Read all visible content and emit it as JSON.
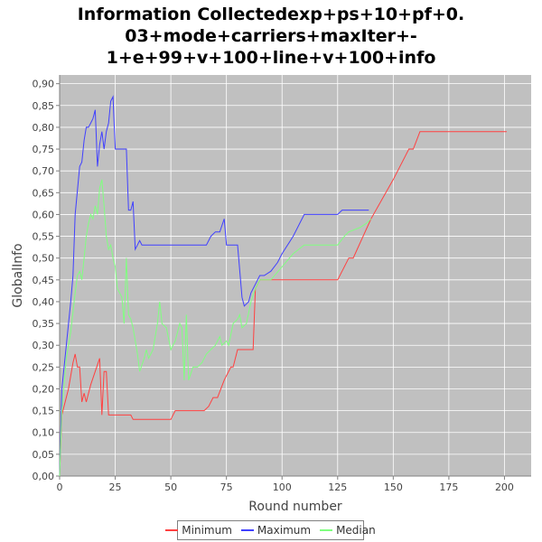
{
  "chart_data": {
    "type": "line",
    "title_lines": [
      "Information Collectedexp+ps+10+pf+0.",
      "03+mode+carriers+maxIter+-",
      "1+e+99+v+100+line+v+100+info"
    ],
    "xlabel": "Round number",
    "ylabel": "GlobalInfo",
    "xlim": [
      0,
      212
    ],
    "ylim": [
      0.0,
      0.92
    ],
    "xticks": [
      0,
      25,
      50,
      75,
      100,
      125,
      150,
      175,
      200
    ],
    "xtick_labels": [
      "0",
      "25",
      "50",
      "75",
      "100",
      "125",
      "150",
      "175",
      "200"
    ],
    "yticks": [
      0.0,
      0.05,
      0.1,
      0.15,
      0.2,
      0.25,
      0.3,
      0.35,
      0.4,
      0.45,
      0.5,
      0.55,
      0.6,
      0.65,
      0.7,
      0.75,
      0.8,
      0.85,
      0.9
    ],
    "ytick_labels": [
      "0,00",
      "0,05",
      "0,10",
      "0,15",
      "0,20",
      "0,25",
      "0,30",
      "0,35",
      "0,40",
      "0,45",
      "0,50",
      "0,55",
      "0,60",
      "0,65",
      "0,70",
      "0,75",
      "0,80",
      "0,85",
      "0,90"
    ],
    "grid": true,
    "legend_position": "bottom",
    "background": "#c0c0c0",
    "series": [
      {
        "name": "Minimum",
        "color": "#ff4040",
        "points": [
          [
            0,
            0.0
          ],
          [
            1,
            0.14
          ],
          [
            2,
            0.16
          ],
          [
            4,
            0.2
          ],
          [
            6,
            0.26
          ],
          [
            7,
            0.28
          ],
          [
            8,
            0.25
          ],
          [
            9,
            0.25
          ],
          [
            10,
            0.17
          ],
          [
            11,
            0.19
          ],
          [
            12,
            0.17
          ],
          [
            13,
            0.19
          ],
          [
            14,
            0.21
          ],
          [
            16,
            0.24
          ],
          [
            18,
            0.27
          ],
          [
            19,
            0.14
          ],
          [
            20,
            0.24
          ],
          [
            21,
            0.24
          ],
          [
            22,
            0.14
          ],
          [
            25,
            0.14
          ],
          [
            32,
            0.14
          ],
          [
            33,
            0.13
          ],
          [
            40,
            0.13
          ],
          [
            50,
            0.13
          ],
          [
            52,
            0.15
          ],
          [
            57,
            0.15
          ],
          [
            65,
            0.15
          ],
          [
            67,
            0.16
          ],
          [
            69,
            0.18
          ],
          [
            71,
            0.18
          ],
          [
            74,
            0.22
          ],
          [
            77,
            0.25
          ],
          [
            78,
            0.25
          ],
          [
            80,
            0.29
          ],
          [
            87,
            0.29
          ],
          [
            88,
            0.43
          ],
          [
            90,
            0.45
          ],
          [
            100,
            0.45
          ],
          [
            110,
            0.45
          ],
          [
            125,
            0.45
          ],
          [
            127,
            0.47
          ],
          [
            130,
            0.5
          ],
          [
            132,
            0.5
          ],
          [
            140,
            0.59
          ],
          [
            150,
            0.68
          ],
          [
            155,
            0.73
          ],
          [
            157,
            0.75
          ],
          [
            159,
            0.75
          ],
          [
            162,
            0.79
          ],
          [
            180,
            0.79
          ],
          [
            201,
            0.79
          ]
        ]
      },
      {
        "name": "Maximum",
        "color": "#4040ff",
        "points": [
          [
            0,
            0.0
          ],
          [
            1,
            0.2
          ],
          [
            3,
            0.3
          ],
          [
            5,
            0.4
          ],
          [
            6,
            0.46
          ],
          [
            7,
            0.6
          ],
          [
            9,
            0.71
          ],
          [
            10,
            0.72
          ],
          [
            11,
            0.77
          ],
          [
            12,
            0.8
          ],
          [
            13,
            0.8
          ],
          [
            14,
            0.81
          ],
          [
            15,
            0.82
          ],
          [
            16,
            0.84
          ],
          [
            17,
            0.71
          ],
          [
            18,
            0.76
          ],
          [
            19,
            0.79
          ],
          [
            20,
            0.75
          ],
          [
            21,
            0.79
          ],
          [
            22,
            0.81
          ],
          [
            23,
            0.86
          ],
          [
            24,
            0.87
          ],
          [
            25,
            0.75
          ],
          [
            30,
            0.75
          ],
          [
            31,
            0.61
          ],
          [
            32,
            0.61
          ],
          [
            33,
            0.63
          ],
          [
            34,
            0.52
          ],
          [
            35,
            0.53
          ],
          [
            36,
            0.54
          ],
          [
            37,
            0.53
          ],
          [
            40,
            0.53
          ],
          [
            50,
            0.53
          ],
          [
            60,
            0.53
          ],
          [
            66,
            0.53
          ],
          [
            68,
            0.55
          ],
          [
            70,
            0.56
          ],
          [
            72,
            0.56
          ],
          [
            74,
            0.59
          ],
          [
            75,
            0.53
          ],
          [
            80,
            0.53
          ],
          [
            82,
            0.41
          ],
          [
            83,
            0.39
          ],
          [
            85,
            0.4
          ],
          [
            86,
            0.42
          ],
          [
            88,
            0.44
          ],
          [
            90,
            0.46
          ],
          [
            92,
            0.46
          ],
          [
            95,
            0.47
          ],
          [
            98,
            0.49
          ],
          [
            100,
            0.51
          ],
          [
            105,
            0.55
          ],
          [
            110,
            0.6
          ],
          [
            125,
            0.6
          ],
          [
            127,
            0.61
          ],
          [
            139,
            0.61
          ]
        ]
      },
      {
        "name": "Median",
        "color": "#80ff80",
        "points": [
          [
            0,
            0.0
          ],
          [
            1,
            0.15
          ],
          [
            3,
            0.27
          ],
          [
            5,
            0.33
          ],
          [
            7,
            0.42
          ],
          [
            8,
            0.46
          ],
          [
            9,
            0.47
          ],
          [
            10,
            0.45
          ],
          [
            11,
            0.5
          ],
          [
            12,
            0.55
          ],
          [
            13,
            0.58
          ],
          [
            14,
            0.6
          ],
          [
            15,
            0.59
          ],
          [
            16,
            0.62
          ],
          [
            17,
            0.6
          ],
          [
            18,
            0.66
          ],
          [
            19,
            0.68
          ],
          [
            20,
            0.62
          ],
          [
            21,
            0.55
          ],
          [
            22,
            0.52
          ],
          [
            23,
            0.53
          ],
          [
            24,
            0.5
          ],
          [
            25,
            0.48
          ],
          [
            26,
            0.43
          ],
          [
            27,
            0.42
          ],
          [
            28,
            0.41
          ],
          [
            29,
            0.35
          ],
          [
            30,
            0.5
          ],
          [
            31,
            0.37
          ],
          [
            32,
            0.36
          ],
          [
            33,
            0.34
          ],
          [
            35,
            0.28
          ],
          [
            36,
            0.24
          ],
          [
            38,
            0.27
          ],
          [
            39,
            0.29
          ],
          [
            40,
            0.27
          ],
          [
            42,
            0.29
          ],
          [
            44,
            0.35
          ],
          [
            45,
            0.4
          ],
          [
            46,
            0.35
          ],
          [
            48,
            0.34
          ],
          [
            50,
            0.29
          ],
          [
            52,
            0.31
          ],
          [
            54,
            0.35
          ],
          [
            55,
            0.34
          ],
          [
            56,
            0.22
          ],
          [
            57,
            0.37
          ],
          [
            58,
            0.22
          ],
          [
            60,
            0.25
          ],
          [
            62,
            0.25
          ],
          [
            64,
            0.26
          ],
          [
            66,
            0.28
          ],
          [
            68,
            0.29
          ],
          [
            70,
            0.3
          ],
          [
            72,
            0.32
          ],
          [
            73,
            0.3
          ],
          [
            75,
            0.31
          ],
          [
            76,
            0.3
          ],
          [
            78,
            0.35
          ],
          [
            80,
            0.36
          ],
          [
            81,
            0.37
          ],
          [
            82,
            0.34
          ],
          [
            84,
            0.35
          ],
          [
            86,
            0.4
          ],
          [
            88,
            0.43
          ],
          [
            90,
            0.45
          ],
          [
            95,
            0.45
          ],
          [
            100,
            0.48
          ],
          [
            105,
            0.51
          ],
          [
            110,
            0.53
          ],
          [
            115,
            0.53
          ],
          [
            120,
            0.53
          ],
          [
            125,
            0.53
          ],
          [
            128,
            0.55
          ],
          [
            130,
            0.56
          ],
          [
            135,
            0.57
          ],
          [
            138,
            0.58
          ],
          [
            140,
            0.59
          ]
        ]
      }
    ]
  }
}
